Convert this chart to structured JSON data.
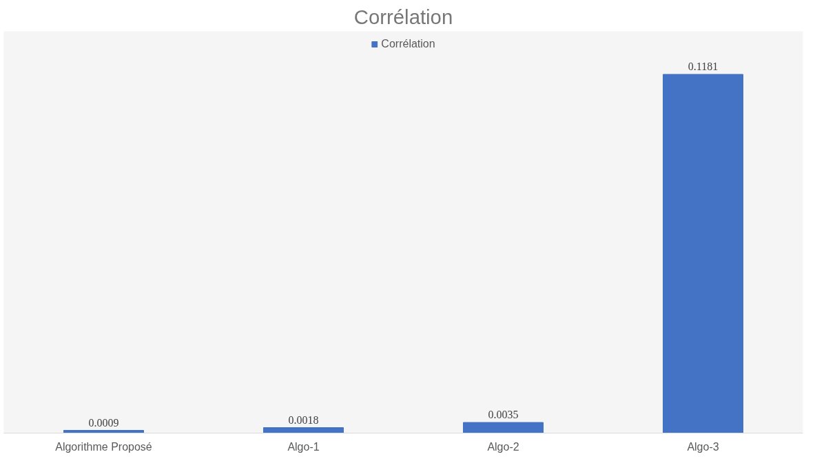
{
  "chart_data": {
    "type": "bar",
    "title": "Corrélation",
    "categories": [
      "Algorithme Proposé",
      "Algo-1",
      "Algo-2",
      "Algo-3"
    ],
    "series": [
      {
        "name": "Corrélation",
        "color": "#4472c4",
        "values": [
          0.0009,
          0.0018,
          0.0035,
          0.1181
        ]
      }
    ],
    "data_labels": true,
    "legend": "top",
    "grid": false
  }
}
